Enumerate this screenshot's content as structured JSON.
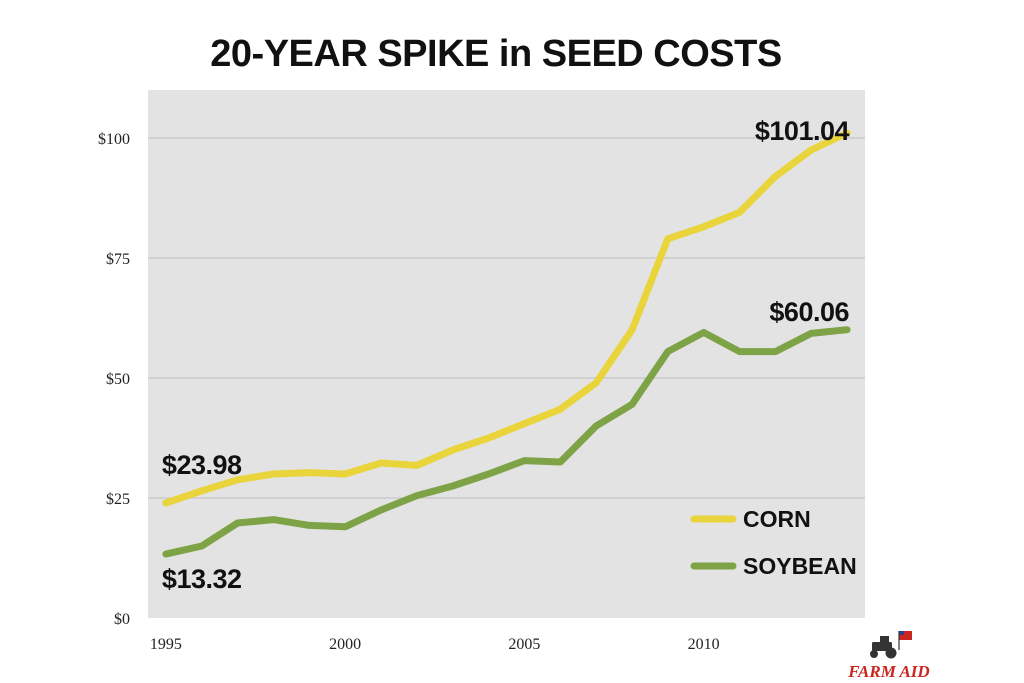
{
  "chart_data": {
    "type": "line",
    "title": "20-YEAR SPIKE in SEED COSTS",
    "xlabel": "",
    "ylabel": "",
    "xlim": [
      1994.5,
      2014.5
    ],
    "ylim": [
      0,
      110
    ],
    "x_ticks": [
      1995,
      2000,
      2005,
      2010
    ],
    "y_ticks": [
      {
        "value": 0,
        "label": "$0"
      },
      {
        "value": 25,
        "label": "$25"
      },
      {
        "value": 50,
        "label": "$50"
      },
      {
        "value": 75,
        "label": "$75"
      },
      {
        "value": 100,
        "label": "$100"
      }
    ],
    "grid": "horizontal",
    "legend_position": "bottom-right",
    "x": [
      1995,
      1996,
      1997,
      1998,
      1999,
      2000,
      2001,
      2002,
      2003,
      2004,
      2005,
      2006,
      2007,
      2008,
      2009,
      2010,
      2011,
      2012,
      2013,
      2014
    ],
    "series": [
      {
        "name": "CORN",
        "color": "#e9d43c",
        "values": [
          23.98,
          26.5,
          28.8,
          30.0,
          30.3,
          30.0,
          32.3,
          31.8,
          35.0,
          37.5,
          40.5,
          43.5,
          49.0,
          60.0,
          79.0,
          81.5,
          84.5,
          92.0,
          97.5,
          101.04
        ]
      },
      {
        "name": "SOYBEAN",
        "color": "#7ea347",
        "values": [
          13.32,
          15.0,
          19.8,
          20.5,
          19.3,
          19.0,
          22.5,
          25.5,
          27.5,
          30.0,
          32.8,
          32.5,
          40.0,
          44.5,
          55.5,
          59.5,
          55.5,
          55.5,
          59.3,
          60.06
        ]
      }
    ],
    "annotations": [
      {
        "text": "$23.98",
        "series": "CORN",
        "x": 1995
      },
      {
        "text": "$13.32",
        "series": "SOYBEAN",
        "x": 1995
      },
      {
        "text": "$101.04",
        "series": "CORN",
        "x": 2014
      },
      {
        "text": "$60.06",
        "series": "SOYBEAN",
        "x": 2014
      }
    ]
  },
  "logo": {
    "text": "FARM AID",
    "color": "#c8261e",
    "icon": "tractor-with-flag-icon"
  }
}
